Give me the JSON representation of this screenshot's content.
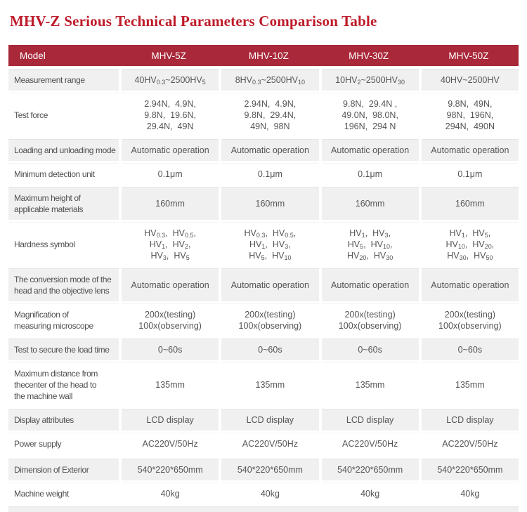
{
  "title": "MHV-Z Serious Technical Parameters Comparison Table",
  "colors": {
    "title": "#be1b2a",
    "header_bg": "#a9293a",
    "header_text": "#ffffff",
    "row_gray": "#f0f0f0",
    "text": "#555555"
  },
  "table": {
    "header": {
      "label": "Model",
      "columns": [
        "MHV-5Z",
        "MHV-10Z",
        "MHV-30Z",
        "MHV-50Z"
      ]
    },
    "rows": [
      {
        "label": [
          "Measurement range"
        ],
        "cells": [
          [
            "40HV_{0.3}~2500HV_{5}"
          ],
          [
            "8HV_{0.3}~2500HV_{10}"
          ],
          [
            "10HV_{2}~2500HV_{30}"
          ],
          [
            "40HV~2500HV"
          ]
        ]
      },
      {
        "label": [
          "Test force"
        ],
        "cells": [
          [
            "2.94N,  4.9N,",
            "9.8N,  19.6N,",
            "29.4N,  49N"
          ],
          [
            "2.94N,  4.9N,",
            "9.8N,  29.4N,",
            "49N,  98N"
          ],
          [
            "9.8N,  29.4N ,",
            "49.0N,  98.0N,",
            "196N,  294 N"
          ],
          [
            "9.8N,  49N,",
            "98N,  196N,",
            "294N,  490N"
          ]
        ]
      },
      {
        "label": [
          "Loading and unloading mode"
        ],
        "cells": [
          [
            "Automatic operation"
          ],
          [
            "Automatic operation"
          ],
          [
            "Automatic operation"
          ],
          [
            "Automatic operation"
          ]
        ]
      },
      {
        "label": [
          "Minimum detection unit"
        ],
        "cells": [
          [
            "0.1μm"
          ],
          [
            "0.1μm"
          ],
          [
            "0.1μm"
          ],
          [
            "0.1μm"
          ]
        ]
      },
      {
        "label": [
          "Maximum height of",
          "applicable materials"
        ],
        "cells": [
          [
            "160mm"
          ],
          [
            "160mm"
          ],
          [
            "160mm"
          ],
          [
            "160mm"
          ]
        ]
      },
      {
        "label": [
          "Hardness symbol"
        ],
        "cells": [
          [
            "HV_{0.3},  HV_{0.5},",
            "HV_{1},  HV_{2},",
            "HV_{3},  HV_{5}"
          ],
          [
            "HV_{0.3},  HV_{0.5},",
            "HV_{1},  HV_{3},",
            "HV_{5},  HV_{10}"
          ],
          [
            "HV_{1},  HV_{3},",
            "HV_{5},  HV_{10},",
            "HV_{20},  HV_{30}"
          ],
          [
            "HV_{1},  HV_{5},",
            "HV_{10},  HV_{20},",
            "HV_{30},  HV_{50}"
          ]
        ]
      },
      {
        "label": [
          "The conversion mode of the",
          "head and the objective lens"
        ],
        "cells": [
          [
            "Automatic operation"
          ],
          [
            "Automatic operation"
          ],
          [
            "Automatic operation"
          ],
          [
            "Automatic operation"
          ]
        ]
      },
      {
        "label": [
          "Magnification of",
          "measuring microscope"
        ],
        "cells": [
          [
            "200x(testing)",
            "100x(observing)"
          ],
          [
            "200x(testing)",
            "100x(observing)"
          ],
          [
            "200x(testing)",
            "100x(observing)"
          ],
          [
            "200x(testing)",
            "100x(observing)"
          ]
        ]
      },
      {
        "label": [
          "Test to secure the load time"
        ],
        "cells": [
          [
            "0~60s"
          ],
          [
            "0~60s"
          ],
          [
            "0~60s"
          ],
          [
            "0~60s"
          ]
        ]
      },
      {
        "label": [
          "Maximum distance from",
          "thecenter of the head to",
          "the machine wall"
        ],
        "cells": [
          [
            "135mm"
          ],
          [
            "135mm"
          ],
          [
            "135mm"
          ],
          [
            "135mm"
          ]
        ]
      },
      {
        "label": [
          "Display attributes"
        ],
        "cells": [
          [
            "LCD display"
          ],
          [
            "LCD display"
          ],
          [
            "LCD display"
          ],
          [
            "LCD display"
          ]
        ]
      },
      {
        "label": [
          "Power supply"
        ],
        "cells": [
          [
            "AC220V/50Hz"
          ],
          [
            "AC220V/50Hz"
          ],
          [
            "AC220V/50Hz"
          ],
          [
            "AC220V/50Hz"
          ]
        ]
      },
      {
        "label": [
          "Dimension of Exterior"
        ],
        "cells": [
          [
            "540*220*650mm"
          ],
          [
            "540*220*650mm"
          ],
          [
            "540*220*650mm"
          ],
          [
            "540*220*650mm"
          ]
        ]
      },
      {
        "label": [
          "Machine weight"
        ],
        "cells": [
          [
            "40kg"
          ],
          [
            "40kg"
          ],
          [
            "40kg"
          ],
          [
            "40kg"
          ]
        ]
      }
    ]
  }
}
